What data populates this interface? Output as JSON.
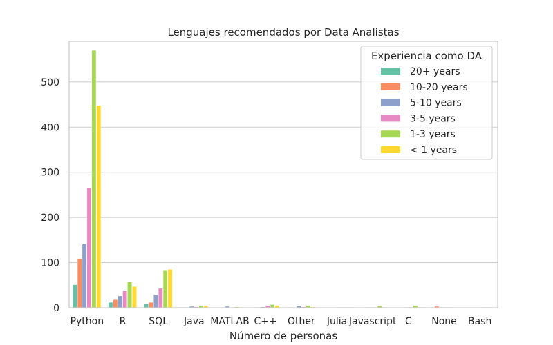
{
  "chart_data": {
    "type": "bar",
    "title": "Lenguajes recomendados por Data Analistas",
    "xlabel": "Número de personas",
    "ylabel": "",
    "ylim": [
      0,
      590
    ],
    "yticks": [
      0,
      100,
      200,
      300,
      400,
      500
    ],
    "grid": "horizontal",
    "legend_placement": "top-right",
    "legend_title": "Experiencia como DA",
    "categories": [
      "Python",
      "R",
      "SQL",
      "Java",
      "MATLAB",
      "C++",
      "Other",
      "Julia",
      "Javascript",
      "C",
      "None",
      "Bash"
    ],
    "series": [
      {
        "name": "20+ years",
        "color": "#66c2a5",
        "values": [
          51,
          12,
          9,
          1,
          0,
          0,
          1,
          0,
          0,
          0,
          0,
          0
        ]
      },
      {
        "name": "10-20 years",
        "color": "#fc8d62",
        "values": [
          108,
          18,
          12,
          0,
          0,
          1,
          0,
          0,
          0,
          0,
          3,
          0
        ]
      },
      {
        "name": "5-10 years",
        "color": "#8da0cb",
        "values": [
          141,
          26,
          29,
          3,
          3,
          2,
          4,
          0,
          1,
          1,
          1,
          0
        ]
      },
      {
        "name": "3-5 years",
        "color": "#e78ac3",
        "values": [
          266,
          37,
          43,
          2,
          1,
          5,
          2,
          0,
          1,
          1,
          1,
          0
        ]
      },
      {
        "name": "1-3 years",
        "color": "#a6d854",
        "values": [
          570,
          57,
          82,
          5,
          2,
          7,
          5,
          1,
          4,
          5,
          1,
          1
        ]
      },
      {
        "name": "< 1 years",
        "color": "#ffd92f",
        "values": [
          448,
          47,
          85,
          5,
          1,
          5,
          2,
          1,
          1,
          1,
          0,
          0
        ]
      }
    ]
  }
}
